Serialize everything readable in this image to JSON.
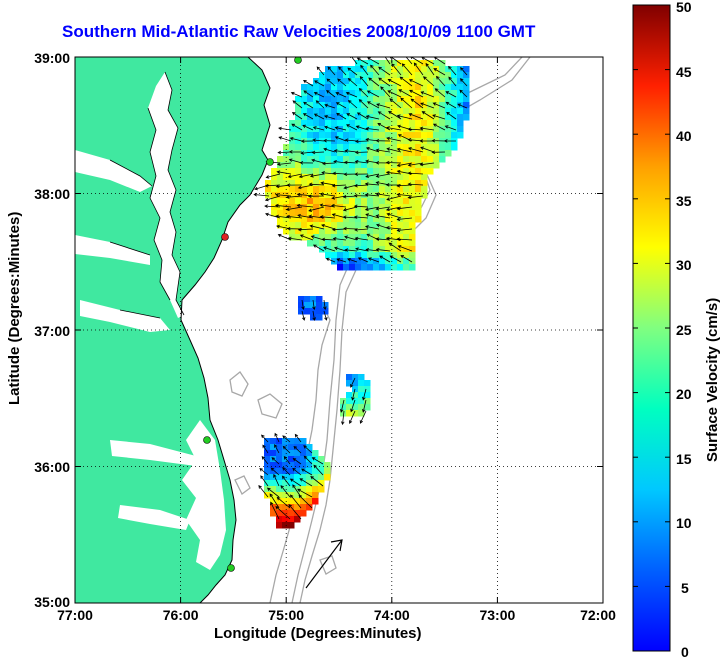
{
  "title": "Southern Mid-Atlantic Raw Velocities 2008/10/09 1100 GMT",
  "x_axis": {
    "label": "Longitude (Degrees:Minutes)",
    "ticks": [
      "77:00",
      "76:00",
      "75:00",
      "74:00",
      "73:00",
      "72:00"
    ]
  },
  "y_axis": {
    "label": "Latitude (Degrees:Minutes)",
    "ticks": [
      "39:00",
      "38:00",
      "37:00",
      "36:00",
      "35:00"
    ]
  },
  "colorbar": {
    "label": "Surface Velocity (cm/s)",
    "ticks": [
      "0",
      "5",
      "10",
      "15",
      "20",
      "25",
      "30",
      "35",
      "40",
      "45",
      "50"
    ],
    "range": [
      0,
      50
    ],
    "colormap": "jet"
  },
  "colors": {
    "land": "#40e8a0",
    "ocean": "#ffffff",
    "title": "#0000ff",
    "bathymetry": "#a8a8a8",
    "station_active": "#22cc22",
    "station_alert": "#dd2222"
  },
  "map": {
    "lon_range": [
      -77,
      -72
    ],
    "lat_range": [
      35,
      39
    ],
    "grid": true,
    "grid_style": "dotted",
    "north_arrow": true
  }
}
